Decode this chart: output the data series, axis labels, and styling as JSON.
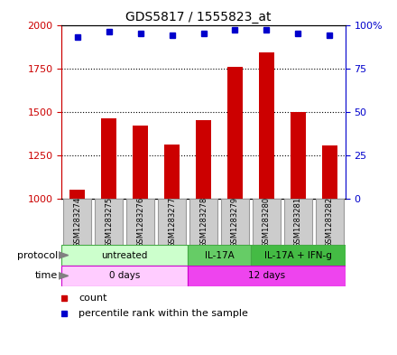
{
  "title": "GDS5817 / 1555823_at",
  "samples": [
    "GSM1283274",
    "GSM1283275",
    "GSM1283276",
    "GSM1283277",
    "GSM1283278",
    "GSM1283279",
    "GSM1283280",
    "GSM1283281",
    "GSM1283282"
  ],
  "counts": [
    1050,
    1460,
    1420,
    1310,
    1450,
    1760,
    1840,
    1500,
    1305
  ],
  "percentiles": [
    93,
    96,
    95,
    94,
    95,
    97,
    97,
    95,
    94
  ],
  "ylim": [
    1000,
    2000
  ],
  "y2lim": [
    0,
    100
  ],
  "yticks": [
    1000,
    1250,
    1500,
    1750,
    2000
  ],
  "ytick_labels": [
    "1000",
    "1250",
    "1500",
    "1750",
    "2000"
  ],
  "y2ticks": [
    0,
    25,
    50,
    75,
    100
  ],
  "y2tick_labels": [
    "0",
    "25",
    "50",
    "75",
    "100%"
  ],
  "bar_color": "#cc0000",
  "dot_color": "#0000cc",
  "bar_width": 0.5,
  "proto_untreated_color": "#ccffcc",
  "proto_il17a_color": "#66cc66",
  "proto_ilfng_color": "#44bb44",
  "proto_border_color": "#44aa44",
  "time_0_color": "#ffccff",
  "time_12_color": "#ee44ee",
  "time_border_color": "#cc00cc",
  "sample_box_color": "#cccccc",
  "sample_box_edge": "#999999",
  "tick_color_left": "#cc0000",
  "tick_color_right": "#0000cc",
  "legend_count_color": "#cc0000",
  "legend_pct_color": "#0000cc",
  "grid_dotted_color": "#000000"
}
